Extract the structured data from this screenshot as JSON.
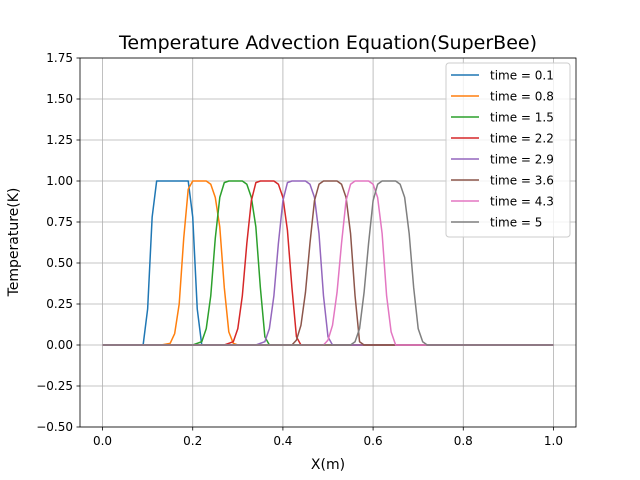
{
  "chart_data": {
    "type": "line",
    "title": "Temperature Advection Equation(SuperBee)",
    "xlabel": "X(m)",
    "ylabel": "Temperature(K)",
    "xlim": [
      -0.05,
      1.05
    ],
    "ylim": [
      -0.5,
      1.75
    ],
    "x_ticks": [
      "0.0",
      "0.2",
      "0.4",
      "0.6",
      "0.8",
      "1.0"
    ],
    "y_ticks": [
      "−0.50",
      "−0.25",
      "0.00",
      "0.25",
      "0.50",
      "0.75",
      "1.00",
      "1.25",
      "1.50",
      "1.75"
    ],
    "grid": true,
    "legend_position": "top-right",
    "series": [
      {
        "name": "time = 0.1",
        "color": "#1f77b4",
        "points": [
          [
            0.0,
            0
          ],
          [
            0.09,
            0
          ],
          [
            0.1,
            0.22
          ],
          [
            0.11,
            0.78
          ],
          [
            0.12,
            1.0
          ],
          [
            0.19,
            1.0
          ],
          [
            0.2,
            0.78
          ],
          [
            0.21,
            0.22
          ],
          [
            0.22,
            0
          ],
          [
            1.0,
            0
          ]
        ]
      },
      {
        "name": "time = 0.8",
        "color": "#ff7f0e",
        "points": [
          [
            0.0,
            0
          ],
          [
            0.13,
            0
          ],
          [
            0.15,
            0.01
          ],
          [
            0.16,
            0.07
          ],
          [
            0.17,
            0.25
          ],
          [
            0.18,
            0.65
          ],
          [
            0.19,
            0.95
          ],
          [
            0.2,
            1.0
          ],
          [
            0.23,
            1.0
          ],
          [
            0.24,
            0.98
          ],
          [
            0.25,
            0.9
          ],
          [
            0.26,
            0.72
          ],
          [
            0.27,
            0.35
          ],
          [
            0.28,
            0.08
          ],
          [
            0.29,
            0.01
          ],
          [
            0.3,
            0
          ],
          [
            1.0,
            0
          ]
        ]
      },
      {
        "name": "time = 1.5",
        "color": "#2ca02c",
        "points": [
          [
            0.0,
            0
          ],
          [
            0.2,
            0
          ],
          [
            0.22,
            0.02
          ],
          [
            0.23,
            0.1
          ],
          [
            0.24,
            0.3
          ],
          [
            0.25,
            0.65
          ],
          [
            0.26,
            0.9
          ],
          [
            0.27,
            0.99
          ],
          [
            0.28,
            1.0
          ],
          [
            0.31,
            1.0
          ],
          [
            0.32,
            0.98
          ],
          [
            0.33,
            0.9
          ],
          [
            0.34,
            0.72
          ],
          [
            0.35,
            0.35
          ],
          [
            0.36,
            0.05
          ],
          [
            0.37,
            0
          ],
          [
            1.0,
            0
          ]
        ]
      },
      {
        "name": "time = 2.2",
        "color": "#d62728",
        "points": [
          [
            0.0,
            0
          ],
          [
            0.27,
            0
          ],
          [
            0.29,
            0.02
          ],
          [
            0.3,
            0.1
          ],
          [
            0.31,
            0.3
          ],
          [
            0.32,
            0.62
          ],
          [
            0.33,
            0.88
          ],
          [
            0.34,
            0.99
          ],
          [
            0.35,
            1.0
          ],
          [
            0.38,
            1.0
          ],
          [
            0.39,
            0.98
          ],
          [
            0.4,
            0.9
          ],
          [
            0.41,
            0.7
          ],
          [
            0.42,
            0.35
          ],
          [
            0.43,
            0.05
          ],
          [
            0.44,
            0
          ],
          [
            1.0,
            0
          ]
        ]
      },
      {
        "name": "time = 2.9",
        "color": "#9467bd",
        "points": [
          [
            0.0,
            0
          ],
          [
            0.34,
            0
          ],
          [
            0.36,
            0.02
          ],
          [
            0.37,
            0.1
          ],
          [
            0.38,
            0.3
          ],
          [
            0.39,
            0.62
          ],
          [
            0.4,
            0.88
          ],
          [
            0.41,
            0.99
          ],
          [
            0.42,
            1.0
          ],
          [
            0.45,
            1.0
          ],
          [
            0.46,
            0.98
          ],
          [
            0.47,
            0.9
          ],
          [
            0.48,
            0.68
          ],
          [
            0.49,
            0.3
          ],
          [
            0.5,
            0.05
          ],
          [
            0.51,
            0
          ],
          [
            1.0,
            0
          ]
        ]
      },
      {
        "name": "time = 3.6",
        "color": "#8c564b",
        "points": [
          [
            0.0,
            0
          ],
          [
            0.42,
            0
          ],
          [
            0.43,
            0.03
          ],
          [
            0.44,
            0.12
          ],
          [
            0.45,
            0.32
          ],
          [
            0.46,
            0.62
          ],
          [
            0.47,
            0.88
          ],
          [
            0.48,
            0.98
          ],
          [
            0.49,
            1.0
          ],
          [
            0.52,
            1.0
          ],
          [
            0.53,
            0.98
          ],
          [
            0.54,
            0.9
          ],
          [
            0.55,
            0.68
          ],
          [
            0.56,
            0.3
          ],
          [
            0.57,
            0.02
          ],
          [
            0.58,
            0
          ],
          [
            1.0,
            0
          ]
        ]
      },
      {
        "name": "time = 4.3",
        "color": "#e377c2",
        "points": [
          [
            0.0,
            0
          ],
          [
            0.49,
            0
          ],
          [
            0.5,
            0.03
          ],
          [
            0.51,
            0.12
          ],
          [
            0.52,
            0.32
          ],
          [
            0.53,
            0.62
          ],
          [
            0.54,
            0.88
          ],
          [
            0.55,
            0.98
          ],
          [
            0.56,
            1.0
          ],
          [
            0.59,
            1.0
          ],
          [
            0.6,
            0.98
          ],
          [
            0.61,
            0.9
          ],
          [
            0.62,
            0.68
          ],
          [
            0.63,
            0.3
          ],
          [
            0.64,
            0.08
          ],
          [
            0.65,
            0
          ],
          [
            1.0,
            0
          ]
        ]
      },
      {
        "name": "time = 5",
        "color": "#7f7f7f",
        "points": [
          [
            0.0,
            0
          ],
          [
            0.55,
            0
          ],
          [
            0.56,
            0.02
          ],
          [
            0.57,
            0.1
          ],
          [
            0.58,
            0.32
          ],
          [
            0.59,
            0.62
          ],
          [
            0.6,
            0.88
          ],
          [
            0.61,
            0.98
          ],
          [
            0.62,
            1.0
          ],
          [
            0.65,
            1.0
          ],
          [
            0.66,
            0.98
          ],
          [
            0.67,
            0.9
          ],
          [
            0.68,
            0.68
          ],
          [
            0.69,
            0.35
          ],
          [
            0.7,
            0.1
          ],
          [
            0.71,
            0.02
          ],
          [
            0.72,
            0
          ],
          [
            1.0,
            0
          ]
        ]
      }
    ]
  }
}
